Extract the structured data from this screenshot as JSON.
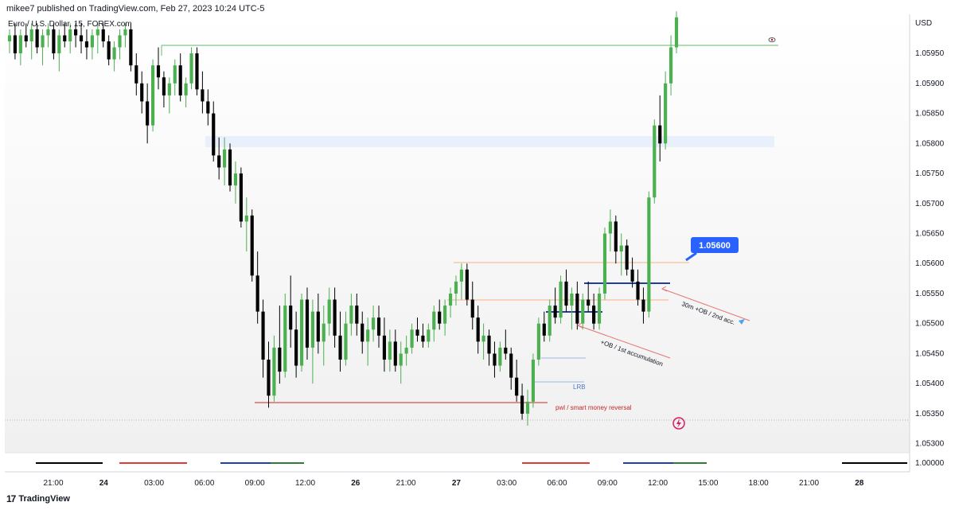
{
  "header": {
    "publish_text": "mikee7 published on TradingView.com, Feb 27, 2023 10:24 UTC-5",
    "symbol_title": "Euro / U.S. Dollar, 15, FOREX.com"
  },
  "footer": {
    "brand": "TradingView",
    "logo_glyph": "17"
  },
  "colors": {
    "up": "#4caf50",
    "down": "#000000",
    "accent": "#2962ff"
  },
  "chart_data": {
    "type": "candlestick",
    "currency": "USD",
    "ylim": [
      1.05285,
      1.06015
    ],
    "y_ticks": [
      "1.05950",
      "1.05900",
      "1.05850",
      "1.05800",
      "1.05750",
      "1.05700",
      "1.05650",
      "1.05600",
      "1.05550",
      "1.05500",
      "1.05450",
      "1.05400",
      "1.05350",
      "1.05300"
    ],
    "secondary_tick": "1.00000",
    "x_ticks": [
      "21:00",
      "24",
      "03:00",
      "06:00",
      "09:00",
      "12:00",
      "26",
      "21:00",
      "27",
      "03:00",
      "06:00",
      "09:00",
      "12:00",
      "15:00",
      "18:00",
      "21:00",
      "28"
    ],
    "price_tag": "1.05600",
    "annotations": {
      "lrb": "LRB",
      "pwl": "pwl / smart money reversal",
      "ob1": "+OB / 1st accumulation",
      "ob2": "30m +OB / 2nd acc."
    },
    "candles": [
      [
        1.0597,
        1.0599,
        1.0595,
        1.0598
      ],
      [
        1.0598,
        1.06,
        1.0594,
        1.0595
      ],
      [
        1.0595,
        1.0599,
        1.0593,
        1.0598
      ],
      [
        1.0598,
        1.06,
        1.0596,
        1.0597
      ],
      [
        1.0597,
        1.06,
        1.0594,
        1.0599
      ],
      [
        1.0599,
        1.06,
        1.0595,
        1.0596
      ],
      [
        1.0596,
        1.0599,
        1.0593,
        1.0598
      ],
      [
        1.0598,
        1.06,
        1.0596,
        1.0599
      ],
      [
        1.0599,
        1.06,
        1.0594,
        1.0595
      ],
      [
        1.0595,
        1.0599,
        1.0592,
        1.0598
      ],
      [
        1.0598,
        1.06,
        1.0596,
        1.0597
      ],
      [
        1.0597,
        1.06,
        1.0595,
        1.0599
      ],
      [
        1.0599,
        1.06,
        1.0596,
        1.0598
      ],
      [
        1.0598,
        1.06,
        1.0595,
        1.0597
      ],
      [
        1.0597,
        1.0599,
        1.0594,
        1.0596
      ],
      [
        1.0596,
        1.0599,
        1.0594,
        1.0598
      ],
      [
        1.0598,
        1.06,
        1.0595,
        1.0599
      ],
      [
        1.0599,
        1.06,
        1.0596,
        1.0597
      ],
      [
        1.0597,
        1.0598,
        1.0593,
        1.0594
      ],
      [
        1.0594,
        1.0597,
        1.0592,
        1.0596
      ],
      [
        1.0596,
        1.0599,
        1.0594,
        1.0598
      ],
      [
        1.0598,
        1.06,
        1.0596,
        1.0599
      ],
      [
        1.0599,
        1.06,
        1.0592,
        1.0593
      ],
      [
        1.0593,
        1.0595,
        1.0588,
        1.059
      ],
      [
        1.059,
        1.0592,
        1.0585,
        1.0587
      ],
      [
        1.0587,
        1.059,
        1.058,
        1.0583
      ],
      [
        1.0583,
        1.0594,
        1.0582,
        1.0593
      ],
      [
        1.0593,
        1.0596,
        1.0589,
        1.0591
      ],
      [
        1.0591,
        1.0592,
        1.0586,
        1.0588
      ],
      [
        1.0588,
        1.0591,
        1.0585,
        1.059
      ],
      [
        1.059,
        1.0594,
        1.0588,
        1.0593
      ],
      [
        1.0593,
        1.0595,
        1.0587,
        1.0588
      ],
      [
        1.0588,
        1.0591,
        1.0586,
        1.059
      ],
      [
        1.059,
        1.0596,
        1.0589,
        1.0595
      ],
      [
        1.0595,
        1.0596,
        1.0588,
        1.0589
      ],
      [
        1.0589,
        1.0592,
        1.0585,
        1.0587
      ],
      [
        1.0587,
        1.0589,
        1.0583,
        1.0585
      ],
      [
        1.0585,
        1.0587,
        1.0577,
        1.0578
      ],
      [
        1.0578,
        1.0581,
        1.0574,
        1.0576
      ],
      [
        1.0576,
        1.0581,
        1.0573,
        1.0579
      ],
      [
        1.0579,
        1.058,
        1.0572,
        1.0573
      ],
      [
        1.0573,
        1.0577,
        1.057,
        1.0575
      ],
      [
        1.0575,
        1.0576,
        1.0566,
        1.0567
      ],
      [
        1.0567,
        1.0571,
        1.0562,
        1.0568
      ],
      [
        1.0568,
        1.0569,
        1.0557,
        1.0558
      ],
      [
        1.0558,
        1.0562,
        1.055,
        1.0552
      ],
      [
        1.0552,
        1.0554,
        1.0541,
        1.0544
      ],
      [
        1.0544,
        1.0547,
        1.0536,
        1.0538
      ],
      [
        1.0538,
        1.0548,
        1.0537,
        1.0546
      ],
      [
        1.0546,
        1.0553,
        1.054,
        1.0542
      ],
      [
        1.0542,
        1.0555,
        1.0541,
        1.0553
      ],
      [
        1.0553,
        1.0558,
        1.0546,
        1.0549
      ],
      [
        1.0549,
        1.0552,
        1.0541,
        1.0543
      ],
      [
        1.0543,
        1.0555,
        1.0542,
        1.0554
      ],
      [
        1.0554,
        1.0556,
        1.0544,
        1.0546
      ],
      [
        1.0546,
        1.0554,
        1.054,
        1.0552
      ],
      [
        1.0552,
        1.0555,
        1.0545,
        1.0547
      ],
      [
        1.0547,
        1.0553,
        1.0543,
        1.055
      ],
      [
        1.055,
        1.0556,
        1.0548,
        1.0554
      ],
      [
        1.0554,
        1.0556,
        1.0546,
        1.0548
      ],
      [
        1.0548,
        1.0552,
        1.0542,
        1.0544
      ],
      [
        1.0544,
        1.0552,
        1.0543,
        1.055
      ],
      [
        1.055,
        1.0555,
        1.0548,
        1.0553
      ],
      [
        1.0553,
        1.0555,
        1.0548,
        1.055
      ],
      [
        1.055,
        1.0552,
        1.0545,
        1.0547
      ],
      [
        1.0547,
        1.0551,
        1.0543,
        1.0549
      ],
      [
        1.0549,
        1.0553,
        1.0547,
        1.0551
      ],
      [
        1.0551,
        1.0553,
        1.0546,
        1.0548
      ],
      [
        1.0548,
        1.0551,
        1.0542,
        1.0544
      ],
      [
        1.0544,
        1.0549,
        1.0542,
        1.0547
      ],
      [
        1.0547,
        1.0549,
        1.0542,
        1.0543
      ],
      [
        1.0543,
        1.0547,
        1.054,
        1.0545
      ],
      [
        1.0545,
        1.0548,
        1.0543,
        1.0546
      ],
      [
        1.0546,
        1.055,
        1.0545,
        1.0549
      ],
      [
        1.0549,
        1.0551,
        1.0547,
        1.0548
      ],
      [
        1.0548,
        1.055,
        1.0546,
        1.0547
      ],
      [
        1.0547,
        1.055,
        1.0546,
        1.0549
      ],
      [
        1.0549,
        1.0553,
        1.0547,
        1.0552
      ],
      [
        1.0552,
        1.0554,
        1.0549,
        1.055
      ],
      [
        1.055,
        1.0554,
        1.0548,
        1.0553
      ],
      [
        1.0553,
        1.0556,
        1.0551,
        1.0555
      ],
      [
        1.0555,
        1.0558,
        1.0553,
        1.0557
      ],
      [
        1.0557,
        1.056,
        1.0554,
        1.0559
      ],
      [
        1.0559,
        1.056,
        1.0553,
        1.0554
      ],
      [
        1.0554,
        1.0557,
        1.0549,
        1.0551
      ],
      [
        1.0551,
        1.0553,
        1.0545,
        1.0547
      ],
      [
        1.0547,
        1.055,
        1.0544,
        1.0548
      ],
      [
        1.0548,
        1.0549,
        1.0543,
        1.0545
      ],
      [
        1.0545,
        1.0547,
        1.0541,
        1.0543
      ],
      [
        1.0543,
        1.0547,
        1.0542,
        1.0546
      ],
      [
        1.0546,
        1.0549,
        1.0544,
        1.0545
      ],
      [
        1.0545,
        1.0546,
        1.0539,
        1.0541
      ],
      [
        1.0541,
        1.0544,
        1.0537,
        1.0538
      ],
      [
        1.0538,
        1.054,
        1.0534,
        1.0535
      ],
      [
        1.0535,
        1.0539,
        1.0533,
        1.0537
      ],
      [
        1.0537,
        1.0545,
        1.0536,
        1.0544
      ],
      [
        1.0544,
        1.0551,
        1.0543,
        1.055
      ],
      [
        1.055,
        1.0552,
        1.0547,
        1.0548
      ],
      [
        1.0548,
        1.0554,
        1.0547,
        1.0553
      ],
      [
        1.0553,
        1.0556,
        1.055,
        1.0551
      ],
      [
        1.0551,
        1.0558,
        1.055,
        1.0557
      ],
      [
        1.0557,
        1.0559,
        1.0552,
        1.0553
      ],
      [
        1.0553,
        1.0556,
        1.0549,
        1.0555
      ],
      [
        1.0555,
        1.0557,
        1.0549,
        1.055
      ],
      [
        1.055,
        1.0555,
        1.0549,
        1.0554
      ],
      [
        1.0554,
        1.0557,
        1.0552,
        1.0553
      ],
      [
        1.0553,
        1.0555,
        1.0549,
        1.055
      ],
      [
        1.055,
        1.0556,
        1.0549,
        1.0555
      ],
      [
        1.0555,
        1.0566,
        1.0554,
        1.0565
      ],
      [
        1.0565,
        1.0569,
        1.0562,
        1.0567
      ],
      [
        1.0567,
        1.0568,
        1.056,
        1.0562
      ],
      [
        1.0562,
        1.0565,
        1.0558,
        1.0563
      ],
      [
        1.0563,
        1.0564,
        1.0558,
        1.0559
      ],
      [
        1.0559,
        1.0561,
        1.0556,
        1.0557
      ],
      [
        1.0557,
        1.0559,
        1.0553,
        1.0554
      ],
      [
        1.0554,
        1.0556,
        1.055,
        1.0552
      ],
      [
        1.0552,
        1.0572,
        1.0551,
        1.0571
      ],
      [
        1.0571,
        1.0584,
        1.057,
        1.0583
      ],
      [
        1.0583,
        1.0588,
        1.0577,
        1.058
      ],
      [
        1.058,
        1.0592,
        1.0579,
        1.059
      ],
      [
        1.059,
        1.0598,
        1.0588,
        1.0596
      ],
      [
        1.0596,
        1.0602,
        1.0595,
        1.0601
      ]
    ]
  }
}
